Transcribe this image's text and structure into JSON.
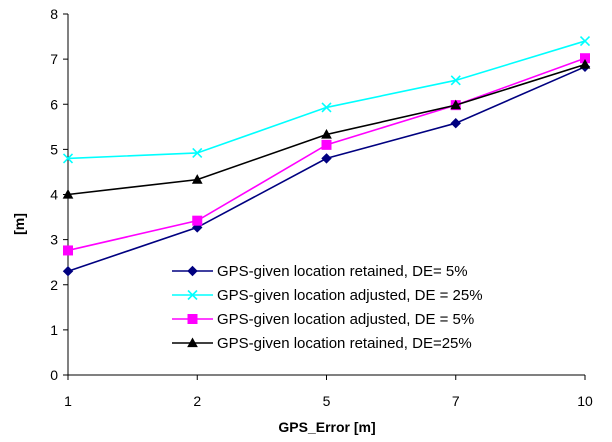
{
  "chart_data": {
    "type": "line",
    "xlabel": "GPS_Error [m]",
    "ylabel": "[m]",
    "categories": [
      "1",
      "2",
      "5",
      "7",
      "10"
    ],
    "ylim": [
      0,
      8
    ],
    "yticks": [
      "0",
      "1",
      "2",
      "3",
      "4",
      "5",
      "6",
      "7",
      "8"
    ],
    "grid": false,
    "legend_position": "bottom-right",
    "series": [
      {
        "name": "GPS-given location retained, DE= 5%",
        "color": "#000080",
        "marker": "diamond",
        "values": [
          2.3,
          3.27,
          4.8,
          5.58,
          6.83
        ]
      },
      {
        "name": "GPS-given location adjusted, DE = 25%",
        "color": "#00FFFF",
        "marker": "x",
        "values": [
          4.8,
          4.92,
          5.93,
          6.53,
          7.4
        ]
      },
      {
        "name": "GPS-given location adjusted, DE = 5%",
        "color": "#FF00FF",
        "marker": "square",
        "values": [
          2.76,
          3.42,
          5.1,
          5.98,
          7.02
        ]
      },
      {
        "name": "GPS-given location retained, DE=25%",
        "color": "#000000",
        "marker": "triangle",
        "values": [
          4.0,
          4.33,
          5.33,
          5.98,
          6.88
        ]
      }
    ]
  }
}
